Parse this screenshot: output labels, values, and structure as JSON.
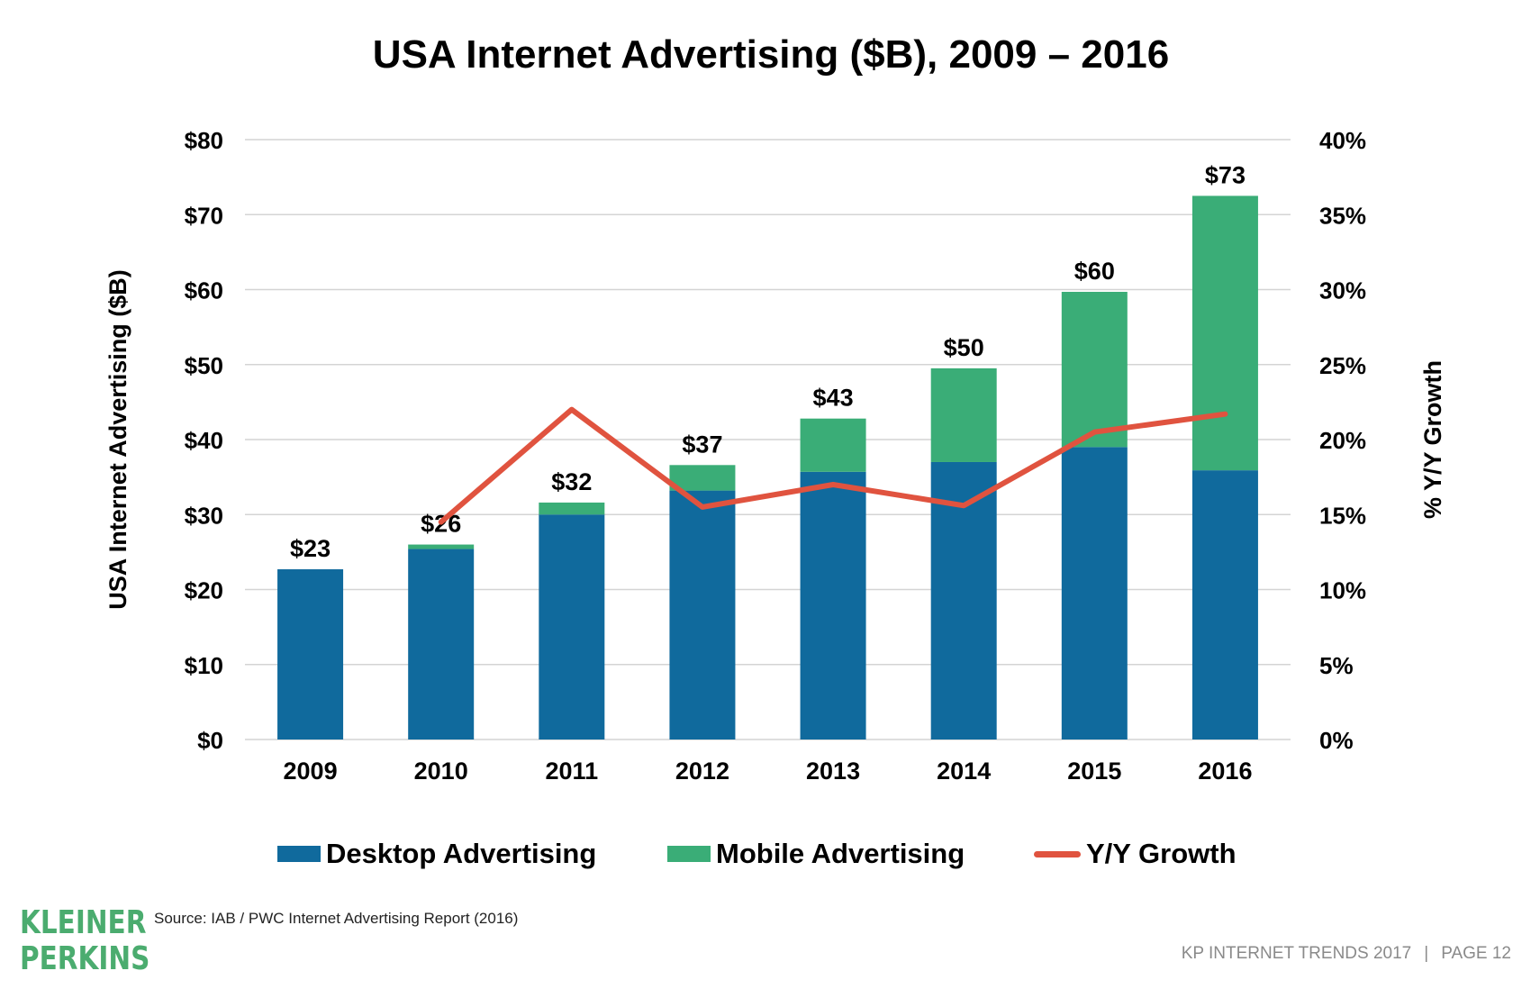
{
  "title": "USA Internet Advertising ($B), 2009 – 2016",
  "chart_data": {
    "type": "bar",
    "stacked": true,
    "categories": [
      "2009",
      "2010",
      "2011",
      "2012",
      "2013",
      "2014",
      "2015",
      "2016"
    ],
    "series": [
      {
        "name": "Desktop Advertising",
        "values": [
          22.7,
          25.4,
          30.0,
          33.2,
          35.7,
          37.0,
          39.0,
          35.9
        ],
        "color": "#106a9d"
      },
      {
        "name": "Mobile Advertising",
        "values": [
          0.0,
          0.6,
          1.6,
          3.4,
          7.1,
          12.5,
          20.7,
          36.6
        ],
        "color": "#3aad77"
      }
    ],
    "line_series": {
      "name": "Y/Y Growth",
      "axis": "right",
      "color": "#e0533f",
      "values": [
        null,
        14.5,
        22.0,
        15.5,
        17.0,
        15.6,
        20.5,
        21.7
      ]
    },
    "total_labels": [
      "$23",
      "$26",
      "$32",
      "$37",
      "$43",
      "$50",
      "$60",
      "$73"
    ],
    "ylabel": "USA Internet Advertising ($B)",
    "y2label": "% Y/Y Growth",
    "ylim": [
      0,
      80
    ],
    "y2lim": [
      0,
      40
    ],
    "yticks": [
      0,
      10,
      20,
      30,
      40,
      50,
      60,
      70,
      80
    ],
    "yticklabels": [
      "$0",
      "$10",
      "$20",
      "$30",
      "$40",
      "$50",
      "$60",
      "$70",
      "$80"
    ],
    "y2ticklabels": [
      "0%",
      "5%",
      "10%",
      "15%",
      "20%",
      "25%",
      "30%",
      "35%",
      "40%"
    ],
    "grid": true,
    "legend_position": "bottom"
  },
  "legend": {
    "desktop": "Desktop Advertising",
    "mobile": "Mobile Advertising",
    "growth": "Y/Y Growth"
  },
  "colors": {
    "desktop": "#106a9d",
    "mobile": "#3aad77",
    "growth": "#e0533f",
    "logo": "#4bac6f"
  },
  "source": "Source: IAB / PWC Internet Advertising Report (2016)",
  "logo": {
    "line1": "KLEINER",
    "line2": "PERKINS"
  },
  "footer": {
    "left": "KP INTERNET TRENDS 2017",
    "separator": "|",
    "right": "PAGE 12"
  }
}
